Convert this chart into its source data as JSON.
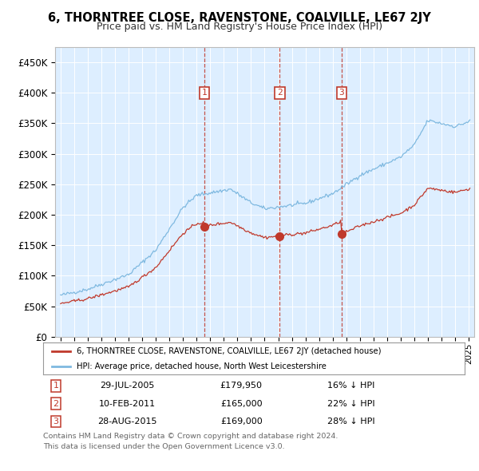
{
  "title": "6, THORNTREE CLOSE, RAVENSTONE, COALVILLE, LE67 2JY",
  "subtitle": "Price paid vs. HM Land Registry's House Price Index (HPI)",
  "hpi_color": "#7fb9e0",
  "price_color": "#c0392b",
  "plot_bg": "#ddeeff",
  "ylim": [
    0,
    475000
  ],
  "yticks": [
    0,
    50000,
    100000,
    150000,
    200000,
    250000,
    300000,
    350000,
    400000,
    450000
  ],
  "xlim_start": 1994.6,
  "xlim_end": 2025.4,
  "transactions": [
    {
      "num": 1,
      "date": "29-JUL-2005",
      "year": 2005.57,
      "price": 179950,
      "pct": "16% ↓ HPI"
    },
    {
      "num": 2,
      "date": "10-FEB-2011",
      "year": 2011.11,
      "price": 165000,
      "pct": "22% ↓ HPI"
    },
    {
      "num": 3,
      "date": "28-AUG-2015",
      "year": 2015.66,
      "price": 169000,
      "pct": "28% ↓ HPI"
    }
  ],
  "legend_label_price": "6, THORNTREE CLOSE, RAVENSTONE, COALVILLE, LE67 2JY (detached house)",
  "legend_label_hpi": "HPI: Average price, detached house, North West Leicestershire",
  "footer_line1": "Contains HM Land Registry data © Crown copyright and database right 2024.",
  "footer_line2": "This data is licensed under the Open Government Licence v3.0."
}
